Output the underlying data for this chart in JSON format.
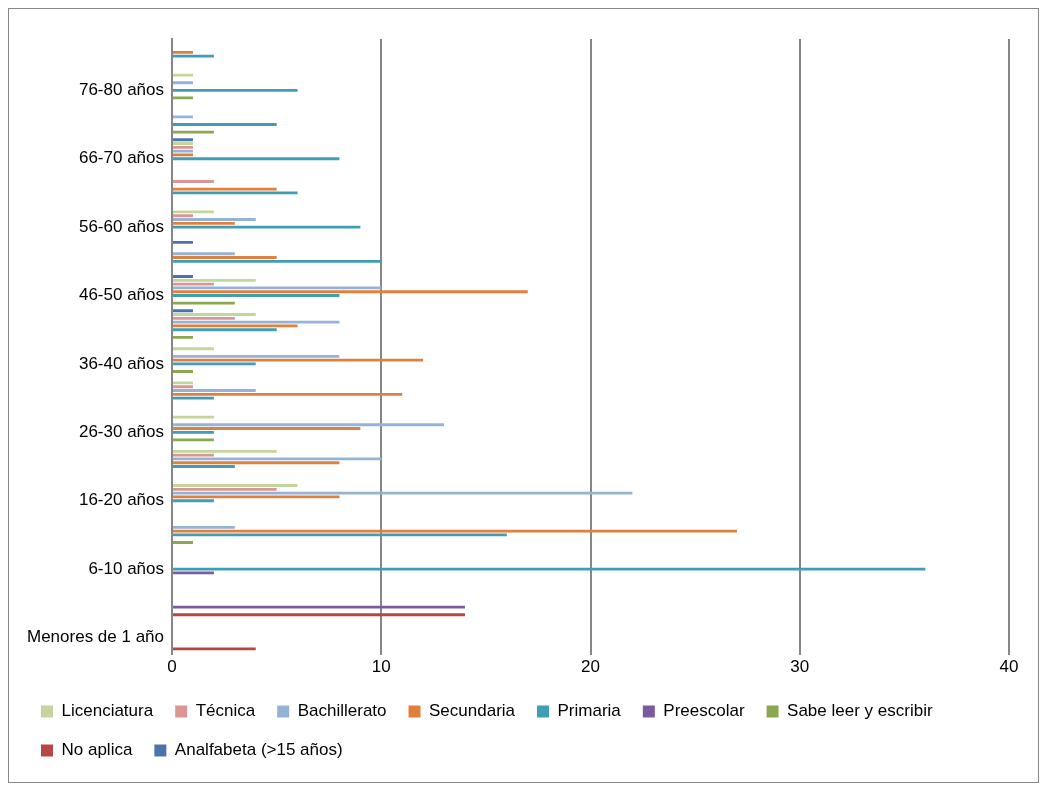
{
  "chart_data": {
    "type": "bar",
    "orientation": "horizontal",
    "categories": [
      null,
      "76-80 años",
      null,
      "66-70 años",
      null,
      "56-60 años",
      null,
      "46-50 años",
      null,
      "36-40 años",
      null,
      "26-30 años",
      null,
      "16-20 años",
      null,
      "6-10 años",
      null,
      "Menores de 1 año"
    ],
    "series": [
      {
        "name": "Licenciatura",
        "color": "#c3d69b",
        "values": [
          null,
          1,
          null,
          1,
          null,
          2,
          null,
          4,
          4,
          2,
          1,
          2,
          5,
          6,
          null,
          null,
          null,
          null
        ]
      },
      {
        "name": "Técnica",
        "color": "#d99694",
        "values": [
          null,
          null,
          null,
          1,
          2,
          1,
          null,
          2,
          3,
          null,
          1,
          null,
          2,
          5,
          null,
          null,
          null,
          null
        ]
      },
      {
        "name": "Bachillerato",
        "color": "#95b3d7",
        "values": [
          null,
          1,
          1,
          1,
          null,
          4,
          3,
          10,
          8,
          8,
          4,
          13,
          10,
          22,
          3,
          null,
          null,
          null
        ]
      },
      {
        "name": "Secundaria",
        "color": "#e0803c",
        "values": [
          1,
          null,
          null,
          1,
          5,
          3,
          5,
          17,
          6,
          12,
          11,
          9,
          8,
          8,
          27,
          null,
          null,
          null
        ]
      },
      {
        "name": "Primaria",
        "color": "#3f9db5",
        "values": [
          2,
          6,
          5,
          8,
          6,
          9,
          10,
          8,
          5,
          4,
          2,
          2,
          3,
          2,
          16,
          36,
          null,
          null
        ]
      },
      {
        "name": "Preescolar",
        "color": "#7b5b9e",
        "values": [
          null,
          null,
          null,
          null,
          null,
          null,
          null,
          null,
          null,
          null,
          null,
          null,
          null,
          null,
          null,
          2,
          14,
          null
        ]
      },
      {
        "name": "Sabe leer y escribir",
        "color": "#8aa84f",
        "values": [
          null,
          1,
          2,
          null,
          null,
          null,
          null,
          3,
          1,
          1,
          null,
          2,
          null,
          null,
          1,
          null,
          null,
          null
        ]
      },
      {
        "name": "No aplica",
        "color": "#b84743",
        "values": [
          null,
          null,
          null,
          null,
          null,
          null,
          null,
          null,
          null,
          null,
          null,
          null,
          null,
          null,
          null,
          null,
          14,
          4
        ]
      },
      {
        "name": "Analfabeta (>15 años)",
        "color": "#4a74ab",
        "values": [
          null,
          null,
          1,
          null,
          null,
          1,
          1,
          1,
          null,
          null,
          null,
          null,
          null,
          null,
          null,
          null,
          null,
          null
        ]
      }
    ],
    "xlim": [
      0,
      40
    ],
    "xticks": [
      0,
      10,
      20,
      30,
      40
    ],
    "grid": "x",
    "legend": "bottom"
  }
}
